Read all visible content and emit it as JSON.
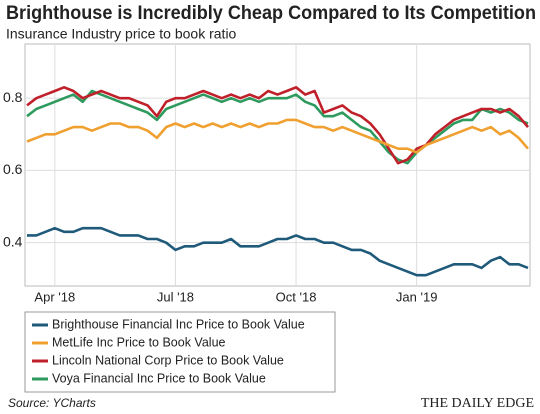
{
  "chart_data": {
    "type": "line",
    "title": "Brighthouse is Incredibly Cheap Compared to Its Competition",
    "subtitle": "Insurance Industry price to book ratio",
    "source": "Source: YCharts",
    "brand": "THE DAILY EDGE",
    "categories": [
      null,
      null,
      null,
      "Apr '18",
      null,
      null,
      null,
      null,
      null,
      null,
      null,
      null,
      null,
      null,
      null,
      null,
      "Jul '18",
      null,
      null,
      null,
      null,
      null,
      null,
      null,
      null,
      null,
      null,
      null,
      null,
      "Oct '18",
      null,
      null,
      null,
      null,
      null,
      null,
      null,
      null,
      null,
      null,
      null,
      null,
      "Jan '19",
      null,
      null,
      null,
      null,
      null,
      null,
      null,
      null,
      null,
      null,
      null,
      null
    ],
    "series": [
      {
        "name": "Brighthouse Financial Inc Price to Book Value",
        "color": "#1f5a7a",
        "values": [
          0.42,
          0.42,
          0.43,
          0.44,
          0.43,
          0.43,
          0.44,
          0.44,
          0.44,
          0.43,
          0.42,
          0.42,
          0.42,
          0.41,
          0.41,
          0.4,
          0.38,
          0.39,
          0.39,
          0.4,
          0.4,
          0.4,
          0.41,
          0.39,
          0.39,
          0.39,
          0.4,
          0.41,
          0.41,
          0.42,
          0.41,
          0.41,
          0.4,
          0.4,
          0.39,
          0.38,
          0.38,
          0.37,
          0.35,
          0.34,
          0.33,
          0.32,
          0.31,
          0.31,
          0.32,
          0.33,
          0.34,
          0.34,
          0.34,
          0.33,
          0.35,
          0.36,
          0.34,
          0.34,
          0.33
        ]
      },
      {
        "name": "MetLife Inc Price to Book Value",
        "color": "#f0a030",
        "values": [
          0.68,
          0.69,
          0.7,
          0.7,
          0.71,
          0.72,
          0.72,
          0.71,
          0.72,
          0.73,
          0.73,
          0.72,
          0.72,
          0.71,
          0.69,
          0.72,
          0.73,
          0.72,
          0.73,
          0.72,
          0.73,
          0.72,
          0.73,
          0.72,
          0.73,
          0.72,
          0.73,
          0.73,
          0.74,
          0.74,
          0.73,
          0.72,
          0.72,
          0.71,
          0.72,
          0.71,
          0.7,
          0.69,
          0.68,
          0.67,
          0.66,
          0.66,
          0.65,
          0.67,
          0.68,
          0.69,
          0.7,
          0.71,
          0.72,
          0.71,
          0.72,
          0.7,
          0.71,
          0.69,
          0.66
        ]
      },
      {
        "name": "Lincoln National Corp Price to Book Value",
        "color": "#c0202a",
        "values": [
          0.78,
          0.8,
          0.81,
          0.82,
          0.83,
          0.82,
          0.8,
          0.81,
          0.82,
          0.81,
          0.8,
          0.8,
          0.79,
          0.78,
          0.75,
          0.79,
          0.8,
          0.8,
          0.81,
          0.82,
          0.81,
          0.8,
          0.81,
          0.8,
          0.81,
          0.8,
          0.82,
          0.81,
          0.82,
          0.83,
          0.81,
          0.82,
          0.76,
          0.77,
          0.78,
          0.76,
          0.75,
          0.73,
          0.7,
          0.66,
          0.62,
          0.63,
          0.66,
          0.67,
          0.7,
          0.72,
          0.74,
          0.75,
          0.76,
          0.77,
          0.77,
          0.76,
          0.77,
          0.75,
          0.72
        ]
      },
      {
        "name": "Voya Financial Inc Price to Book Value",
        "color": "#2e9a5e",
        "values": [
          0.75,
          0.77,
          0.78,
          0.79,
          0.8,
          0.81,
          0.79,
          0.82,
          0.81,
          0.8,
          0.79,
          0.78,
          0.77,
          0.76,
          0.74,
          0.77,
          0.78,
          0.79,
          0.8,
          0.81,
          0.8,
          0.79,
          0.8,
          0.79,
          0.8,
          0.79,
          0.8,
          0.8,
          0.8,
          0.81,
          0.79,
          0.78,
          0.75,
          0.75,
          0.76,
          0.74,
          0.72,
          0.71,
          0.68,
          0.65,
          0.63,
          0.62,
          0.65,
          0.67,
          0.69,
          0.71,
          0.73,
          0.74,
          0.74,
          0.77,
          0.76,
          0.77,
          0.76,
          0.74,
          0.73
        ]
      }
    ],
    "ylim": [
      0.28,
      0.95
    ],
    "yticks": [
      0.4,
      0.6,
      0.8
    ],
    "grid": true
  }
}
